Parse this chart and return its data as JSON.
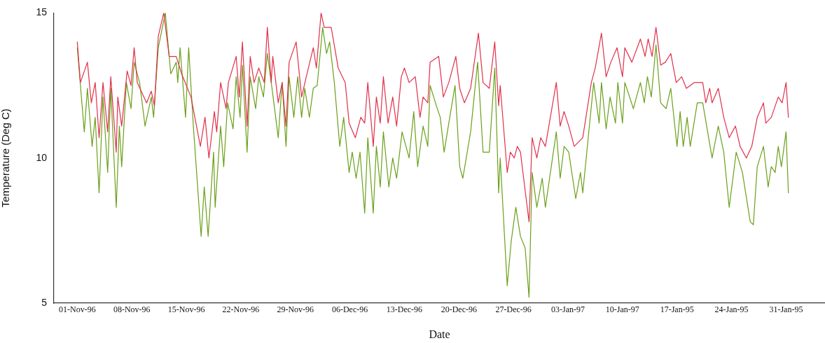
{
  "chart_data": {
    "type": "line",
    "xlabel": "Date",
    "ylabel": "Temperature (Deg C)",
    "xlim": [
      "1996-10-29",
      "1997-02-05"
    ],
    "ylim": [
      5,
      15
    ],
    "yticks": [
      5,
      10,
      15
    ],
    "xticks": [
      {
        "value": "1996-11-01",
        "label": "01-Nov-96"
      },
      {
        "value": "1996-11-08",
        "label": "08-Nov-96"
      },
      {
        "value": "1996-11-15",
        "label": "15-Nov-96"
      },
      {
        "value": "1996-11-22",
        "label": "22-Nov-96"
      },
      {
        "value": "1996-11-29",
        "label": "29-Nov-96"
      },
      {
        "value": "1996-12-06",
        "label": "06-Dec-96"
      },
      {
        "value": "1996-12-13",
        "label": "13-Dec-96"
      },
      {
        "value": "1996-12-20",
        "label": "20-Dec-96"
      },
      {
        "value": "1996-12-27",
        "label": "27-Dec-96"
      },
      {
        "value": "1997-01-03",
        "label": "03-Jan-97"
      },
      {
        "value": "1997-01-10",
        "label": "10-Jan-97"
      },
      {
        "value": "1997-01-17",
        "label": "17-Jan-95"
      },
      {
        "value": "1997-01-24",
        "label": "24-Jan-95"
      },
      {
        "value": "1997-01-31",
        "label": "31-Jan-95"
      }
    ],
    "grid": false,
    "legend": false,
    "marker": "none",
    "line_style": "solid",
    "series": [
      {
        "color": "#e0304a",
        "x": [
          "1996-11-01T00:00",
          "1996-11-01T09:36",
          "1996-11-02T07:12",
          "1996-11-02T19:12",
          "1996-11-03T07:12",
          "1996-11-03T19:12",
          "1996-11-04T07:12",
          "1996-11-04T21:36",
          "1996-11-05T07:12",
          "1996-11-06T00:00",
          "1996-11-06T04:48",
          "1996-11-06T16:48",
          "1996-11-07T09:36",
          "1996-11-07T21:36",
          "1996-11-08T07:12",
          "1996-11-08T16:48",
          "1996-11-09T21:36",
          "1996-11-10T12:00",
          "1996-11-10T21:36",
          "1996-11-11T09:36",
          "1996-11-12T02:24",
          "1996-11-12T19:12",
          "1996-11-13T16:48",
          "1996-11-14T09:36",
          "1996-11-15T14:24",
          "1996-11-16T19:12",
          "1996-11-17T09:36",
          "1996-11-17T21:36",
          "1996-11-18T14:24",
          "1996-11-18T21:36",
          "1996-11-19T09:36",
          "1996-11-20T02:24",
          "1996-11-20T09:36",
          "1996-11-21T09:36",
          "1996-11-21T19:12",
          "1996-11-22T04:48",
          "1996-11-22T19:12",
          "1996-11-23T04:48",
          "1996-11-23T16:48",
          "1996-11-24T07:12",
          "1996-11-25T00:00",
          "1996-11-25T09:36",
          "1996-11-25T21:36",
          "1996-11-26T02:24",
          "1996-11-26T19:12",
          "1996-11-27T07:12",
          "1996-11-27T19:12",
          "1996-11-28T04:48",
          "1996-11-29T02:24",
          "1996-11-29T19:12",
          "1996-11-30T09:36",
          "1996-12-01T07:12",
          "1996-12-01T16:48",
          "1996-12-02T07:12",
          "1996-12-02T16:48",
          "1996-12-03T14:24",
          "1996-12-04T12:00",
          "1996-12-05T09:36",
          "1996-12-05T21:36",
          "1996-12-06T16:48",
          "1996-12-07T09:36",
          "1996-12-07T21:36",
          "1996-12-08T07:12",
          "1996-12-09T00:00",
          "1996-12-09T09:36",
          "1996-12-09T21:36",
          "1996-12-10T07:12",
          "1996-12-10T21:36",
          "1996-12-11T12:00",
          "1996-12-12T00:00",
          "1996-12-12T14:24",
          "1996-12-13T00:00",
          "1996-12-13T14:24",
          "1996-12-14T09:36",
          "1996-12-15T00:00",
          "1996-12-15T09:36",
          "1996-12-16T00:00",
          "1996-12-16T07:12",
          "1996-12-17T09:36",
          "1996-12-18T00:00",
          "1996-12-18T16:48",
          "1996-12-19T14:24",
          "1996-12-20T02:24",
          "1996-12-20T16:48",
          "1996-12-21T12:00",
          "1996-12-22T12:00",
          "1996-12-23T02:24",
          "1996-12-23T21:36",
          "1996-12-24T14:24",
          "1996-12-25T02:24",
          "1996-12-25T07:12",
          "1996-12-26T04:48",
          "1996-12-26T14:24",
          "1996-12-27T02:24",
          "1996-12-27T12:00",
          "1996-12-27T21:36",
          "1996-12-28T09:36",
          "1996-12-29T00:00",
          "1996-12-29T09:36",
          "1996-12-30T00:00",
          "1996-12-30T12:00",
          "1996-12-31T02:24",
          "1997-01-01T12:00",
          "1997-01-02T00:00",
          "1997-01-02T12:00",
          "1997-01-03T02:24",
          "1997-01-03T19:12",
          "1997-01-04T21:36",
          "1997-01-06T00:00",
          "1997-01-06T12:00",
          "1997-01-07T07:12",
          "1997-01-07T21:36",
          "1997-01-08T12:00",
          "1997-01-09T07:12",
          "1997-01-10T00:00",
          "1997-01-10T07:12",
          "1997-01-11T04:48",
          "1997-01-12T07:12",
          "1997-01-12T21:36",
          "1997-01-13T07:12",
          "1997-01-13T19:12",
          "1997-01-14T07:12",
          "1997-01-14T21:36",
          "1997-01-15T12:00",
          "1997-01-16T04:48",
          "1997-01-16T21:36",
          "1997-01-17T14:24",
          "1997-01-18T04:48",
          "1997-01-19T04:48",
          "1997-01-20T07:12",
          "1997-01-20T16:48",
          "1997-01-21T04:48",
          "1997-01-21T12:00",
          "1997-01-22T07:12",
          "1997-01-23T00:00",
          "1997-01-23T16:48",
          "1997-01-24T12:00",
          "1997-01-25T02:24",
          "1997-01-25T21:36",
          "1997-01-26T14:24",
          "1997-01-27T07:12",
          "1997-01-28T02:24",
          "1997-01-28T09:36",
          "1997-01-29T02:24",
          "1997-01-30T00:00",
          "1997-01-30T12:00",
          "1997-01-31T00:00",
          "1997-01-31T07:12"
        ],
        "values": [
          14.0,
          12.6,
          13.3,
          11.9,
          12.6,
          10.7,
          12.6,
          10.9,
          12.8,
          10.2,
          12.1,
          11.1,
          13.0,
          12.5,
          13.8,
          12.6,
          11.9,
          12.3,
          11.8,
          14.2,
          15.0,
          13.5,
          13.5,
          12.9,
          12.1,
          10.4,
          11.4,
          10.0,
          11.6,
          10.9,
          12.6,
          11.7,
          12.6,
          13.5,
          12.1,
          14.0,
          11.1,
          13.5,
          12.6,
          13.1,
          12.6,
          14.5,
          12.6,
          13.5,
          11.9,
          12.6,
          11.1,
          13.3,
          14.0,
          12.1,
          12.8,
          13.8,
          13.1,
          15.0,
          14.5,
          14.5,
          13.1,
          12.6,
          11.2,
          10.7,
          11.4,
          11.2,
          12.6,
          10.4,
          12.1,
          11.2,
          12.8,
          11.2,
          12.1,
          11.1,
          12.8,
          13.1,
          12.6,
          12.8,
          11.4,
          12.1,
          11.9,
          13.3,
          13.5,
          12.1,
          12.6,
          13.5,
          12.4,
          11.9,
          12.4,
          14.3,
          12.6,
          12.4,
          14.0,
          11.8,
          12.5,
          9.5,
          10.2,
          10.0,
          10.4,
          10.2,
          9.1,
          7.8,
          10.7,
          10.0,
          10.7,
          10.4,
          12.6,
          11.1,
          11.6,
          11.1,
          10.4,
          10.7,
          12.6,
          13.1,
          14.3,
          12.8,
          13.3,
          13.8,
          12.8,
          13.8,
          13.3,
          14.1,
          13.5,
          14.1,
          13.5,
          14.5,
          13.2,
          13.3,
          13.6,
          12.6,
          12.8,
          12.4,
          12.6,
          12.6,
          11.9,
          12.4,
          11.9,
          12.4,
          11.4,
          10.7,
          11.1,
          10.4,
          10.0,
          10.4,
          11.4,
          11.9,
          11.2,
          11.4,
          12.1,
          11.9,
          12.6,
          11.4
        ]
      },
      {
        "color": "#6aa01a",
        "x": [
          "1996-11-01T00:00",
          "1996-11-01T21:36",
          "1996-11-02T07:12",
          "1996-11-02T21:36",
          "1996-11-03T07:12",
          "1996-11-03T19:12",
          "1996-11-04T07:12",
          "1996-11-04T21:36",
          "1996-11-05T07:12",
          "1996-11-06T00:00",
          "1996-11-06T09:36",
          "1996-11-06T16:48",
          "1996-11-07T07:12",
          "1996-11-07T21:36",
          "1996-11-08T07:12",
          "1996-11-09T00:00",
          "1996-11-09T16:48",
          "1996-11-10T12:00",
          "1996-11-10T19:12",
          "1996-11-11T09:36",
          "1996-11-12T07:12",
          "1996-11-13T00:00",
          "1996-11-13T16:48",
          "1996-11-13T21:36",
          "1996-11-14T04:48",
          "1996-11-14T21:36",
          "1996-11-15T07:12",
          "1996-11-15T21:36",
          "1996-11-16T21:36",
          "1996-11-17T07:12",
          "1996-11-17T19:12",
          "1996-11-18T12:00",
          "1996-11-18T16:48",
          "1996-11-19T09:36",
          "1996-11-19T19:12",
          "1996-11-20T07:12",
          "1996-11-21T00:00",
          "1996-11-21T09:36",
          "1996-11-21T21:36",
          "1996-11-22T04:48",
          "1996-11-22T19:12",
          "1996-11-23T04:48",
          "1996-11-23T21:36",
          "1996-11-24T07:12",
          "1996-11-24T21:36",
          "1996-11-25T09:36",
          "1996-11-26T00:00",
          "1996-11-26T19:12",
          "1996-11-27T07:12",
          "1996-11-27T19:12",
          "1996-11-28T04:48",
          "1996-11-28T19:12",
          "1996-11-29T07:12",
          "1996-11-29T19:12",
          "1996-11-30T04:48",
          "1996-11-30T19:12",
          "1996-12-01T07:12",
          "1996-12-01T19:12",
          "1996-12-02T12:00",
          "1996-12-03T00:00",
          "1996-12-03T09:36",
          "1996-12-04T00:00",
          "1996-12-04T16:48",
          "1996-12-05T04:48",
          "1996-12-05T21:36",
          "1996-12-06T07:12",
          "1996-12-06T19:12",
          "1996-12-07T07:12",
          "1996-12-07T21:36",
          "1996-12-08T07:12",
          "1996-12-09T00:00",
          "1996-12-09T09:36",
          "1996-12-09T21:36",
          "1996-12-10T07:12",
          "1996-12-11T00:00",
          "1996-12-11T12:00",
          "1996-12-12T00:00",
          "1996-12-12T16:48",
          "1996-12-13T14:24",
          "1996-12-14T04:48",
          "1996-12-14T16:48",
          "1996-12-15T09:36",
          "1996-12-16T00:00",
          "1996-12-16T07:12",
          "1996-12-17T02:24",
          "1996-12-17T14:24",
          "1996-12-18T02:24",
          "1996-12-18T16:48",
          "1996-12-19T12:00",
          "1996-12-20T02:24",
          "1996-12-20T12:00",
          "1996-12-21T12:00",
          "1996-12-22T09:36",
          "1996-12-23T02:24",
          "1996-12-23T21:36",
          "1996-12-24T14:24",
          "1996-12-25T02:24",
          "1996-12-25T07:12",
          "1996-12-26T04:48",
          "1996-12-26T16:48",
          "1996-12-27T07:12",
          "1996-12-27T21:36",
          "1996-12-28T12:00",
          "1996-12-29T00:00",
          "1996-12-29T09:36",
          "1996-12-30T00:00",
          "1996-12-30T16:48",
          "1996-12-31T02:24",
          "1997-01-01T12:00",
          "1997-01-02T00:00",
          "1997-01-02T12:00",
          "1997-01-03T02:24",
          "1997-01-04T00:00",
          "1997-01-04T14:24",
          "1997-01-04T21:36",
          "1997-01-06T07:12",
          "1997-01-07T00:00",
          "1997-01-07T07:12",
          "1997-01-07T21:36",
          "1997-01-08T09:36",
          "1997-01-09T02:24",
          "1997-01-09T09:36",
          "1997-01-10T00:00",
          "1997-01-10T07:12",
          "1997-01-11T09:36",
          "1997-01-12T07:12",
          "1997-01-12T19:12",
          "1997-01-13T04:48",
          "1997-01-13T16:48",
          "1997-01-14T07:12",
          "1997-01-14T21:36",
          "1997-01-15T14:24",
          "1997-01-16T04:48",
          "1997-01-17T00:00",
          "1997-01-17T09:36",
          "1997-01-17T19:12",
          "1997-01-18T07:12",
          "1997-01-18T16:48",
          "1997-01-19T14:24",
          "1997-01-20T07:12",
          "1997-01-21T12:00",
          "1997-01-22T07:12",
          "1997-01-23T00:00",
          "1997-01-23T16:48",
          "1997-01-24T14:24",
          "1997-01-25T09:36",
          "1997-01-26T09:36",
          "1997-01-26T19:12",
          "1997-01-27T07:12",
          "1997-01-28T02:24",
          "1997-01-28T16:48",
          "1997-01-29T02:24",
          "1997-01-29T14:24",
          "1997-01-30T00:00",
          "1997-01-30T09:36",
          "1997-01-31T00:00",
          "1997-01-31T07:12"
        ],
        "values": [
          13.8,
          10.9,
          12.4,
          10.4,
          11.4,
          8.8,
          12.1,
          9.5,
          12.4,
          8.3,
          11.1,
          9.7,
          12.6,
          11.7,
          13.3,
          12.6,
          11.1,
          12.1,
          11.4,
          13.8,
          15.0,
          12.9,
          13.3,
          12.6,
          13.8,
          11.4,
          13.8,
          11.1,
          7.3,
          9.0,
          7.3,
          10.2,
          8.3,
          11.1,
          9.7,
          11.9,
          11.0,
          12.8,
          11.4,
          13.2,
          10.2,
          12.8,
          11.7,
          12.8,
          12.1,
          13.6,
          12.4,
          10.7,
          12.6,
          10.4,
          12.8,
          11.4,
          12.8,
          11.4,
          12.4,
          11.4,
          12.4,
          12.5,
          14.5,
          13.6,
          14.0,
          12.6,
          10.4,
          11.4,
          9.5,
          10.2,
          9.3,
          10.2,
          8.1,
          10.7,
          8.1,
          10.4,
          9.0,
          10.9,
          9.0,
          10.0,
          9.3,
          10.9,
          10.0,
          11.6,
          9.7,
          11.1,
          10.4,
          12.5,
          11.8,
          11.4,
          10.2,
          11.2,
          12.5,
          9.7,
          9.3,
          10.9,
          13.3,
          10.2,
          10.2,
          13.1,
          8.8,
          10.0,
          5.6,
          7.1,
          8.3,
          7.3,
          6.9,
          5.2,
          9.5,
          8.3,
          9.3,
          8.3,
          10.9,
          9.3,
          10.4,
          10.2,
          8.6,
          9.5,
          8.8,
          12.6,
          11.2,
          12.6,
          11.0,
          12.1,
          11.2,
          12.6,
          11.2,
          12.6,
          11.7,
          12.6,
          11.9,
          12.8,
          12.1,
          13.9,
          11.9,
          11.7,
          12.4,
          10.4,
          11.6,
          10.4,
          11.4,
          10.4,
          11.9,
          11.9,
          10.0,
          11.1,
          10.2,
          8.3,
          10.2,
          9.5,
          7.8,
          7.7,
          9.7,
          10.4,
          9.0,
          9.7,
          9.5,
          10.4,
          9.7,
          10.9,
          8.8
        ]
      }
    ]
  }
}
